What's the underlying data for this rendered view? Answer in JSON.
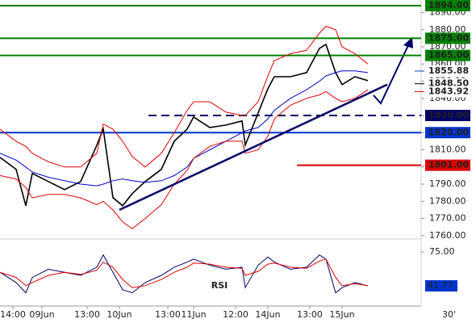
{
  "chart_data": {
    "type": "line",
    "x": [
      0,
      5,
      8,
      10,
      15,
      20,
      25,
      30,
      32,
      35,
      38,
      41,
      45,
      50,
      54,
      58,
      60,
      65,
      70,
      75,
      76,
      80,
      83,
      85,
      90,
      95,
      99,
      101,
      104,
      106,
      110,
      114
    ],
    "xlim": [
      0,
      130
    ],
    "xticks": [
      {
        "value": 4,
        "label": "14:00"
      },
      {
        "value": 13,
        "label": "09Jun"
      },
      {
        "value": 27,
        "label": "13:00"
      },
      {
        "value": 37,
        "label": "10Jun"
      },
      {
        "value": 52,
        "label": "13:00"
      },
      {
        "value": 60,
        "label": "11Jun"
      },
      {
        "value": 73,
        "label": "12:00"
      },
      {
        "value": 83,
        "label": "14Jun"
      },
      {
        "value": 96,
        "label": "13:00"
      },
      {
        "value": 106,
        "label": "15Jun"
      }
    ],
    "x_unit_label": "30'",
    "ylim": [
      1758,
      1897.3
    ],
    "yticks": [
      {
        "value": 1760,
        "label": "1760.00"
      },
      {
        "value": 1770,
        "label": "1770.00"
      },
      {
        "value": 1780,
        "label": "1780.00"
      },
      {
        "value": 1790,
        "label": "1790.00"
      },
      {
        "value": 1800,
        "label": "1800.00"
      },
      {
        "value": 1810,
        "label": "1810.00"
      },
      {
        "value": 1820,
        "label": "1820.00"
      },
      {
        "value": 1830,
        "label": "1830.00"
      },
      {
        "value": 1840,
        "label": "1840.00"
      },
      {
        "value": 1850,
        "label": "1850.00"
      },
      {
        "value": 1860,
        "label": "1860.00"
      },
      {
        "value": 1870,
        "label": "1870.00"
      },
      {
        "value": 1880,
        "label": "1880.00"
      },
      {
        "value": 1890,
        "label": "1890.00"
      }
    ],
    "series": [
      {
        "color": "#000000",
        "values": [
          1805.6,
          1798.6,
          1777.4,
          1796.2,
          1791.5,
          1786.8,
          1791.5,
          1812.7,
          1822.1,
          1782.1,
          1777.4,
          1784.5,
          1791.5,
          1798.6,
          1815.0,
          1822.1,
          1829.1,
          1823.0,
          1824.4,
          1826.8,
          1812.7,
          1831.5,
          1845.6,
          1852.6,
          1852.6,
          1855.0,
          1869.1,
          1871.4,
          1855.0,
          1848.0,
          1852.6,
          1850.3
        ]
      },
      {
        "color": "#0000cc",
        "values": [
          1808,
          1804,
          1800,
          1797,
          1794,
          1792,
          1790,
          1789,
          1790,
          1792,
          1793,
          1792,
          1791,
          1792,
          1795,
          1800,
          1805,
          1810,
          1815,
          1820,
          1821,
          1823,
          1828,
          1833,
          1840,
          1845,
          1850,
          1853,
          1855,
          1856,
          1856,
          1855
        ]
      },
      {
        "color": "#dd0000",
        "values": [
          1822,
          1815,
          1812,
          1808,
          1803,
          1800,
          1800,
          1808,
          1825,
          1822,
          1815,
          1806,
          1800,
          1808,
          1820,
          1833,
          1838,
          1838,
          1832,
          1830,
          1830,
          1838,
          1853,
          1862,
          1866,
          1868,
          1878,
          1882,
          1880,
          1870,
          1866,
          1860
        ]
      },
      {
        "color": "#dd0000",
        "values": [
          1795,
          1793,
          1788,
          1782,
          1784,
          1784,
          1782,
          1778,
          1780,
          1775,
          1768,
          1764,
          1770,
          1778,
          1790,
          1798,
          1805,
          1812,
          1815,
          1815,
          1808,
          1810,
          1818,
          1828,
          1836,
          1840,
          1842,
          1844,
          1840,
          1838,
          1840,
          1845
        ]
      }
    ],
    "levels": [
      {
        "value": 1894,
        "label": "1894.00",
        "color": "#008000",
        "line": "solid"
      },
      {
        "value": 1875,
        "label": "1875.00",
        "color": "#008000",
        "line": "solid"
      },
      {
        "value": 1865,
        "label": "1865.00",
        "color": "#008000",
        "line": "solid"
      },
      {
        "value": 1855.88,
        "label": "1855.88",
        "color": "#0044cc",
        "line": "none"
      },
      {
        "value": 1848.5,
        "label": "1848.50",
        "color": "#000000",
        "line": "none"
      },
      {
        "value": 1843.92,
        "label": "1843.92",
        "color": "#dd0000",
        "line": "none"
      },
      {
        "value": 1830,
        "label": "1830.00",
        "color": "#000066",
        "line": "dashed",
        "x_start": 46
      },
      {
        "value": 1820,
        "label": "1820.00",
        "color": "#0033cc",
        "line": "solid"
      },
      {
        "value": 1801,
        "label": "1801.00",
        "color": "#dd0000",
        "line": "solid",
        "x_start": 92
      }
    ],
    "trendline": {
      "x": [
        37,
        120
      ],
      "values": [
        1775,
        1848
      ],
      "color": "#000066"
    },
    "rsi": {
      "label": "RSI",
      "ylim": [
        22.8,
        86
      ],
      "yticks": [
        {
          "value": 75,
          "label": "75.00"
        }
      ],
      "last": {
        "value": 41.77,
        "label": "41.77"
      },
      "series": [
        {
          "color": "#000066",
          "values": [
            55,
            45,
            35,
            50,
            58,
            55,
            52,
            60,
            72,
            55,
            38,
            35,
            45,
            52,
            60,
            65,
            68,
            62,
            58,
            60,
            40,
            62,
            70,
            65,
            58,
            60,
            72,
            68,
            35,
            40,
            45,
            41.77
          ]
        },
        {
          "color": "#dd0000",
          "values": [
            55,
            50,
            42,
            45,
            52,
            55,
            53,
            57,
            65,
            60,
            48,
            40,
            42,
            48,
            55,
            60,
            64,
            63,
            60,
            59,
            52,
            56,
            63,
            64,
            60,
            59,
            66,
            68,
            50,
            42,
            44,
            42
          ]
        }
      ]
    }
  }
}
